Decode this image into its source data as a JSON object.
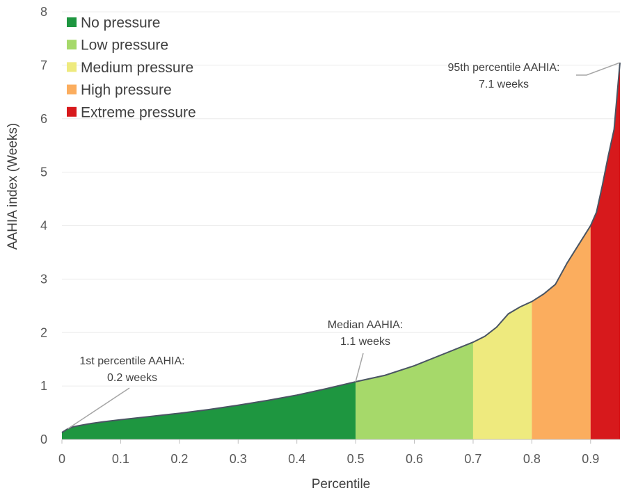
{
  "chart_data": {
    "type": "area",
    "xlabel": "Percentile",
    "ylabel": "AAHIA index (Weeks)",
    "xlim": [
      0,
      0.95
    ],
    "ylim": [
      0,
      8
    ],
    "x_ticks": [
      "0",
      "0.1",
      "0.2",
      "0.3",
      "0.4",
      "0.5",
      "0.6",
      "0.7",
      "0.8",
      "0.9"
    ],
    "y_ticks": [
      "0",
      "1",
      "2",
      "3",
      "4",
      "5",
      "6",
      "7",
      "8"
    ],
    "grid": "horizontal",
    "legend_position": "top-left",
    "curve": {
      "x": [
        0,
        0.01,
        0.02,
        0.03,
        0.05,
        0.07,
        0.1,
        0.15,
        0.2,
        0.25,
        0.3,
        0.35,
        0.4,
        0.45,
        0.5,
        0.55,
        0.6,
        0.65,
        0.7,
        0.72,
        0.74,
        0.76,
        0.78,
        0.8,
        0.82,
        0.84,
        0.86,
        0.88,
        0.9,
        0.91,
        0.92,
        0.93,
        0.94,
        0.95
      ],
      "y": [
        0.13,
        0.2,
        0.24,
        0.26,
        0.3,
        0.33,
        0.37,
        0.43,
        0.49,
        0.56,
        0.64,
        0.73,
        0.83,
        0.95,
        1.08,
        1.2,
        1.38,
        1.6,
        1.82,
        1.93,
        2.1,
        2.35,
        2.48,
        2.58,
        2.72,
        2.9,
        3.3,
        3.65,
        4.0,
        4.25,
        4.75,
        5.3,
        5.8,
        7.05
      ]
    },
    "bands": [
      {
        "name": "No pressure",
        "from": 0,
        "to": 0.5,
        "color": "#1e9640"
      },
      {
        "name": "Low pressure",
        "from": 0.5,
        "to": 0.7,
        "color": "#a6d96a"
      },
      {
        "name": "Medium pressure",
        "from": 0.7,
        "to": 0.8,
        "color": "#eeea7e"
      },
      {
        "name": "High pressure",
        "from": 0.8,
        "to": 0.9,
        "color": "#fbad5e"
      },
      {
        "name": "Extreme pressure",
        "from": 0.9,
        "to": 0.95,
        "color": "#d7191c"
      }
    ],
    "line_color": "#4a5563",
    "annotations": [
      {
        "line1": "1st percentile AAHIA:",
        "line2": "0.2 weeks",
        "x": 0.01,
        "y": 0.2
      },
      {
        "line1": "Median AAHIA:",
        "line2": "1.1 weeks",
        "x": 0.5,
        "y": 1.08
      },
      {
        "line1": "95th percentile AAHIA:",
        "line2": "7.1 weeks",
        "x": 0.95,
        "y": 7.05
      }
    ]
  }
}
